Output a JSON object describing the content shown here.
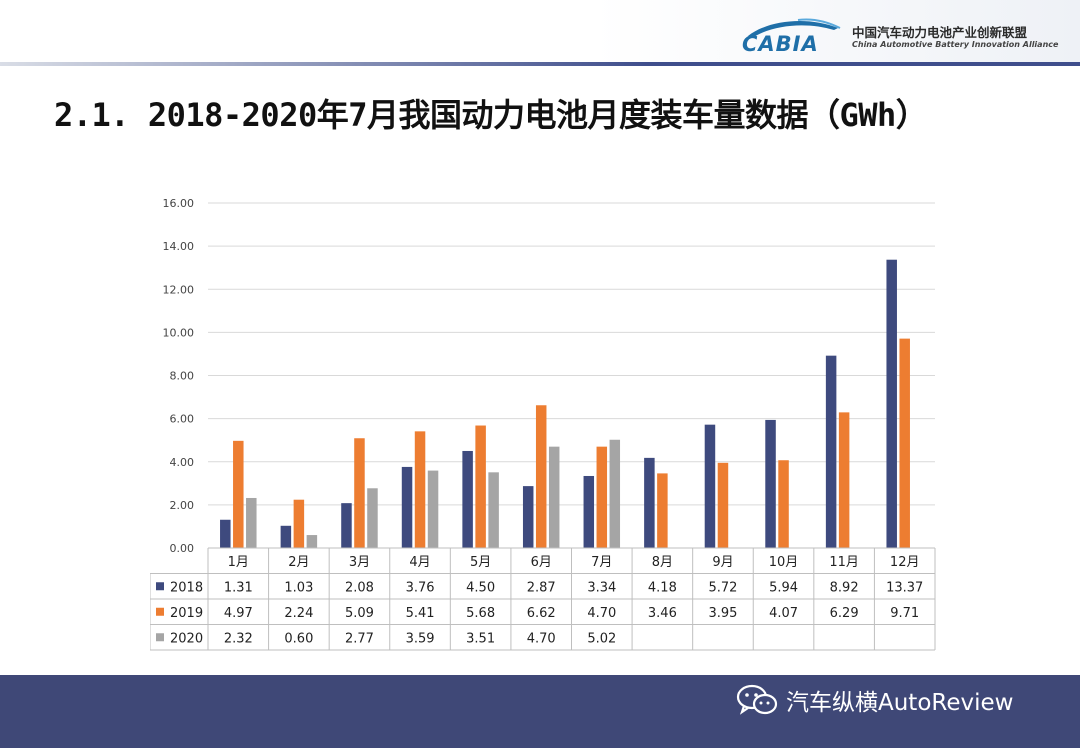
{
  "header": {
    "logo_text": "CABIA",
    "org_cn": "中国汽车动力电池产业创新联盟",
    "org_en": "China Automotive Battery Innovation Alliance"
  },
  "title": "2.1. 2018-2020年7月我国动力电池月度装车量数据（GWh）",
  "watermark": {
    "text": "汽车纵横AutoReview",
    "icon": "wechat-icon"
  },
  "colors": {
    "s2018": "#3e4a7e",
    "s2019": "#ed7d31",
    "s2020": "#a5a5a5",
    "footer": "#3f4877",
    "grid": "#d9d9d9"
  },
  "chart_data": {
    "type": "bar",
    "categories": [
      "1月",
      "2月",
      "3月",
      "4月",
      "5月",
      "6月",
      "7月",
      "8月",
      "9月",
      "10月",
      "11月",
      "12月"
    ],
    "series": [
      {
        "name": "2018",
        "values": [
          1.31,
          1.03,
          2.08,
          3.76,
          4.5,
          2.87,
          3.34,
          4.18,
          5.72,
          5.94,
          8.92,
          13.37
        ]
      },
      {
        "name": "2019",
        "values": [
          4.97,
          2.24,
          5.09,
          5.41,
          5.68,
          6.62,
          4.7,
          3.46,
          3.95,
          4.07,
          6.29,
          9.71
        ]
      },
      {
        "name": "2020",
        "values": [
          2.32,
          0.6,
          2.77,
          3.59,
          3.51,
          4.7,
          5.02,
          null,
          null,
          null,
          null,
          null
        ]
      }
    ],
    "table_labels": [
      [
        "1.31",
        "1.03",
        "2.08",
        "3.76",
        "4.50",
        "2.87",
        "3.34",
        "4.18",
        "5.72",
        "5.94",
        "8.92",
        "13.37"
      ],
      [
        "4.97",
        "2.24",
        "5.09",
        "5.41",
        "5.68",
        "6.62",
        "4.70",
        "3.46",
        "3.95",
        "4.07",
        "6.29",
        "9.71"
      ],
      [
        "2.32",
        "0.60",
        "2.77",
        "3.59",
        "3.51",
        "4.70",
        "5.02",
        "",
        "",
        "",
        "",
        ""
      ]
    ],
    "yticks": [
      "0.00",
      "2.00",
      "4.00",
      "6.00",
      "8.00",
      "10.00",
      "12.00",
      "14.00",
      "16.00"
    ],
    "ylim": [
      0,
      16
    ],
    "grid": true,
    "legend": "data-table"
  }
}
